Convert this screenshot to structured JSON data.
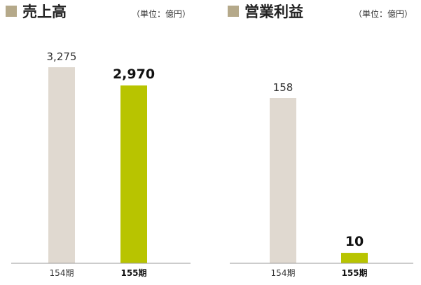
{
  "colors": {
    "marker": "#b5a98a",
    "bar_prev": "#e0d9d0",
    "bar_curr": "#b8c400",
    "baseline": "#999999"
  },
  "chart_data": [
    {
      "type": "bar",
      "title": "売上高",
      "unit": "（単位：億円）",
      "categories": [
        "154期",
        "155期"
      ],
      "values": [
        3275,
        2970
      ],
      "value_labels": [
        "3,275",
        "2,970"
      ],
      "ylim": [
        0,
        3275
      ],
      "grid": false
    },
    {
      "type": "bar",
      "title": "営業利益",
      "unit": "（単位：億円）",
      "categories": [
        "154期",
        "155期"
      ],
      "values": [
        158,
        10
      ],
      "value_labels": [
        "158",
        "10"
      ],
      "ylim": [
        0,
        158
      ],
      "grid": false
    }
  ]
}
